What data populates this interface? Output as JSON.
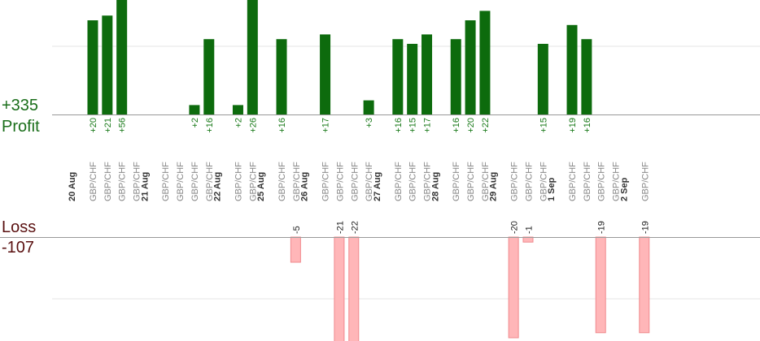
{
  "summary": {
    "profit_total": "+335",
    "profit_label": "Profit",
    "loss_label": "Loss",
    "loss_total": "-107"
  },
  "colors": {
    "profit_bar": "#0d6b0d",
    "profit_text": "#1a7a1a",
    "loss_bar": "#ffb6b8",
    "loss_text": "#222222",
    "category_text": "#888888",
    "date_text": "#333333",
    "axis": "#999999",
    "grid": "#e6e6e6"
  },
  "chart_data": {
    "type": "bar",
    "groups": [
      {
        "date": "20 Aug",
        "trades": [
          {
            "label": "GBP/CHF",
            "value": 20
          },
          {
            "label": "GBP/CHF",
            "value": 21
          },
          {
            "label": "GBP/CHF",
            "value": 56
          },
          {
            "label": "GBP/CHF",
            "value": null
          }
        ]
      },
      {
        "date": "21 Aug",
        "trades": [
          {
            "label": "GBP/CHF",
            "value": null
          },
          {
            "label": "GBP/CHF",
            "value": null
          },
          {
            "label": "GBP/CHF",
            "value": 2
          },
          {
            "label": "GBP/CHF",
            "value": 16
          }
        ]
      },
      {
        "date": "22 Aug",
        "trades": [
          {
            "label": "GBP/CHF",
            "value": 2
          },
          {
            "label": "GBP/CHF",
            "value": 26
          }
        ]
      },
      {
        "date": "25 Aug",
        "trades": [
          {
            "label": "GBP/CHF",
            "value": 16
          },
          {
            "label": "GBP/CHF",
            "value": -5
          }
        ]
      },
      {
        "date": "26 Aug",
        "trades": [
          {
            "label": "GBP/CHF",
            "value": 17
          },
          {
            "label": "GBP/CHF",
            "value": -21
          },
          {
            "label": "GBP/CHF",
            "value": -22
          },
          {
            "label": "GBP/CHF",
            "value": 3
          }
        ]
      },
      {
        "date": "27 Aug",
        "trades": [
          {
            "label": "GBP/CHF",
            "value": 16
          },
          {
            "label": "GBP/CHF",
            "value": 15
          },
          {
            "label": "GBP/CHF",
            "value": 17
          }
        ]
      },
      {
        "date": "28 Aug",
        "trades": [
          {
            "label": "GBP/CHF",
            "value": 16
          },
          {
            "label": "GBP/CHF",
            "value": 20
          },
          {
            "label": "GBP/CHF",
            "value": 22
          }
        ]
      },
      {
        "date": "29 Aug",
        "trades": [
          {
            "label": "GBP/CHF",
            "value": -20
          },
          {
            "label": "GBP/CHF",
            "value": -1
          },
          {
            "label": "GBP/CHF",
            "value": 15
          }
        ]
      },
      {
        "date": "1 Sep",
        "trades": [
          {
            "label": "GBP/CHF",
            "value": 19
          },
          {
            "label": "GBP/CHF",
            "value": 16
          },
          {
            "label": "GBP/CHF",
            "value": -19
          },
          {
            "label": "GBP/CHF",
            "value": null
          }
        ]
      },
      {
        "date": "2 Sep",
        "trades": [
          {
            "label": "GBP/CHF",
            "value": -19
          }
        ]
      }
    ]
  }
}
